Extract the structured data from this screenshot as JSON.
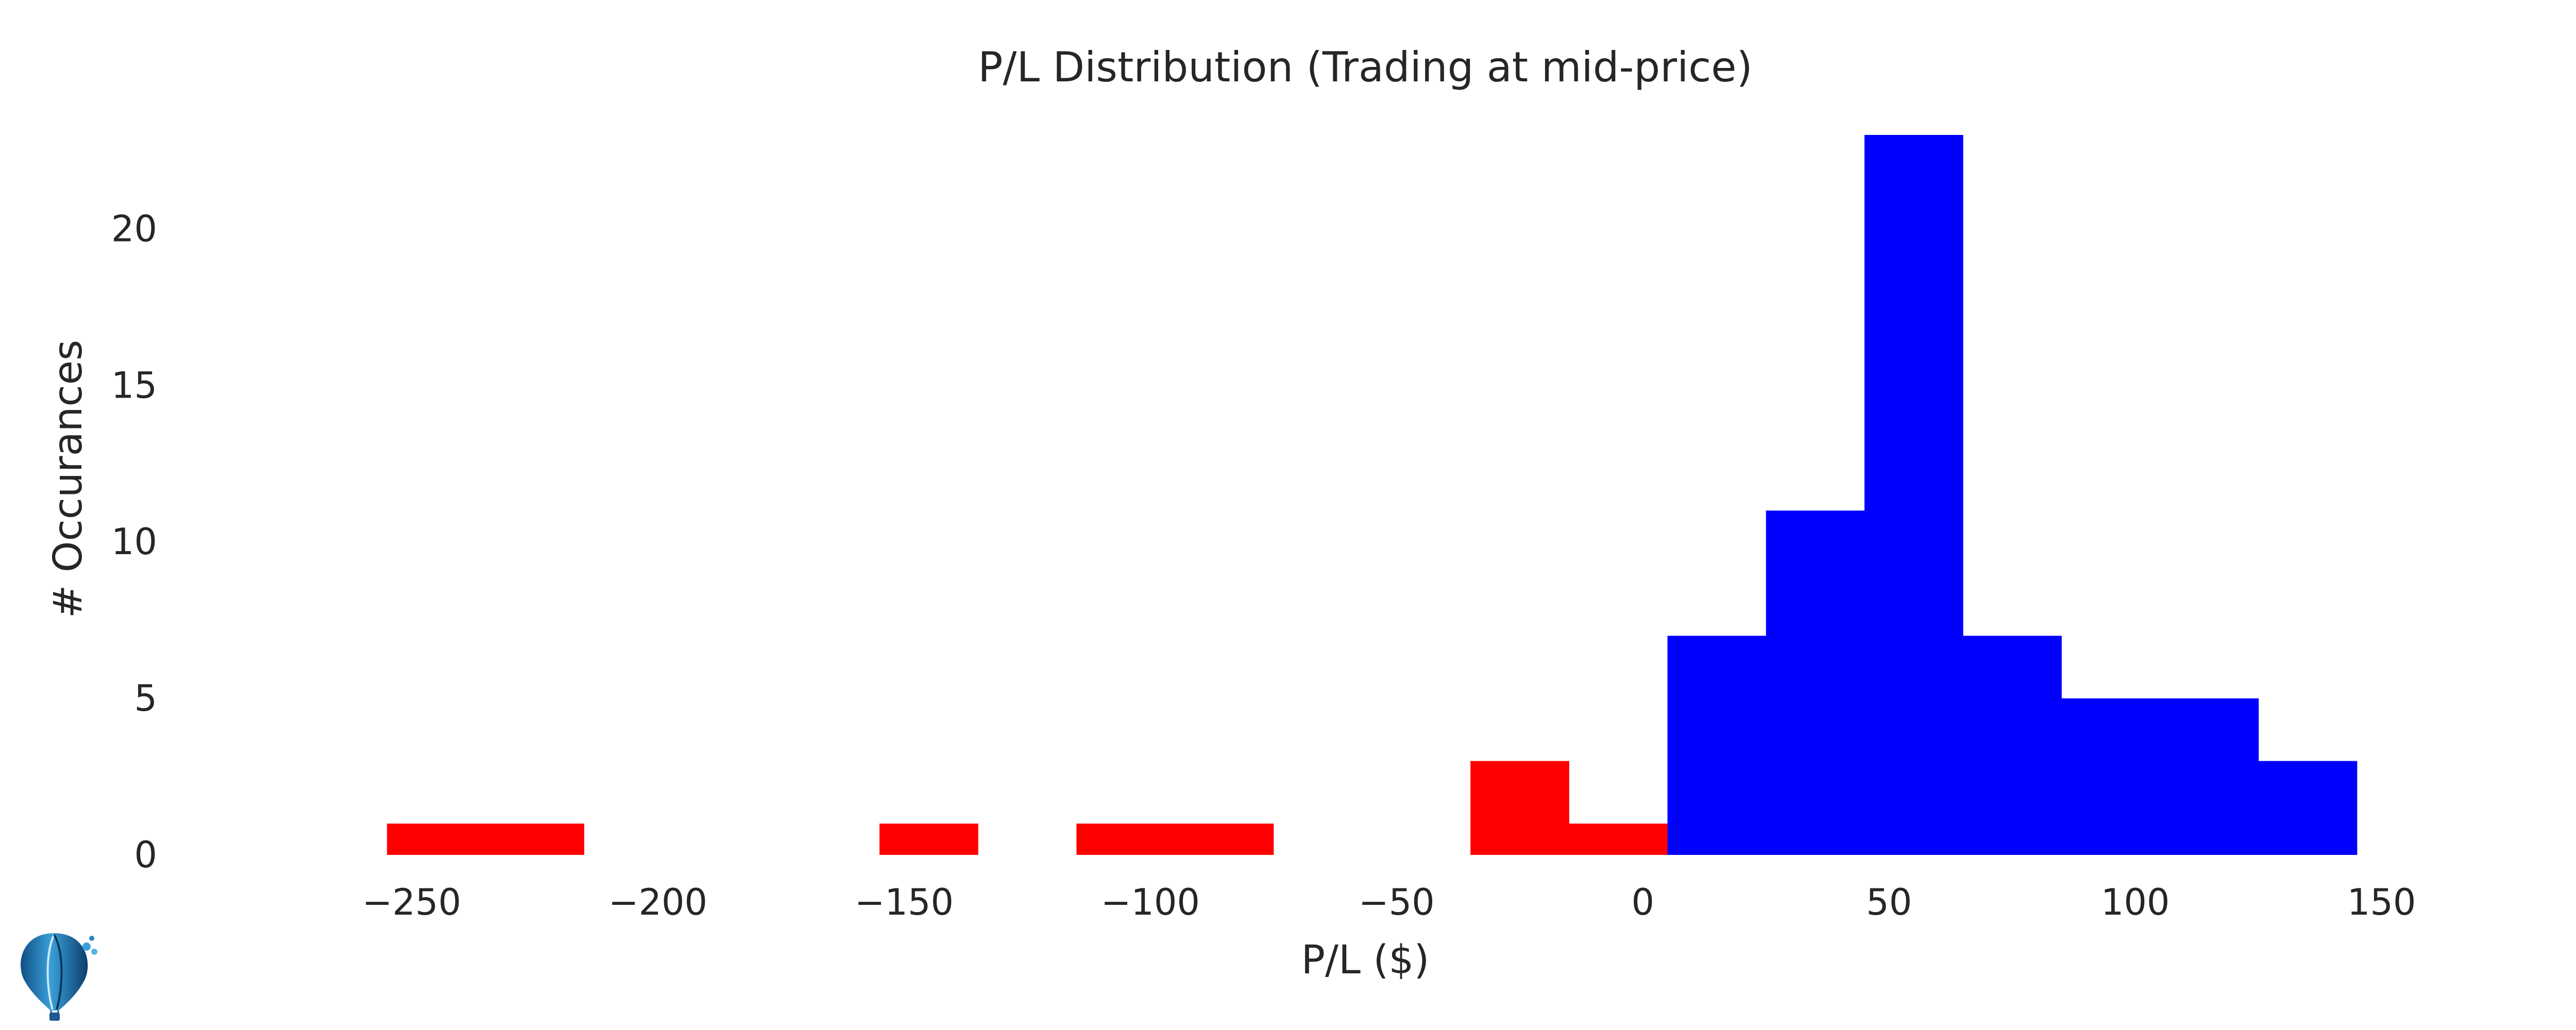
{
  "chart_data": {
    "type": "bar",
    "title": "P/L Distribution (Trading at mid-price)",
    "xlabel": "P/L ($)",
    "ylabel": "# Occurances",
    "xlim": [
      -275,
      165
    ],
    "ylim": [
      0,
      23
    ],
    "grid": false,
    "bin_width": 20,
    "colors": {
      "loss": "#ff0000",
      "profit": "#0000ff"
    },
    "x_ticks": [
      {
        "value": -250,
        "label": "−250"
      },
      {
        "value": -200,
        "label": "−200"
      },
      {
        "value": -150,
        "label": "−150"
      },
      {
        "value": -100,
        "label": "−100"
      },
      {
        "value": -50,
        "label": "−50"
      },
      {
        "value": 0,
        "label": "0"
      },
      {
        "value": 50,
        "label": "50"
      },
      {
        "value": 100,
        "label": "100"
      },
      {
        "value": 150,
        "label": "150"
      }
    ],
    "y_ticks": [
      {
        "value": 0,
        "label": "0"
      },
      {
        "value": 5,
        "label": "5"
      },
      {
        "value": 10,
        "label": "10"
      },
      {
        "value": 15,
        "label": "15"
      },
      {
        "value": 20,
        "label": "20"
      }
    ],
    "bins": [
      {
        "start": -255,
        "end": -235,
        "count": 1,
        "kind": "loss"
      },
      {
        "start": -235,
        "end": -215,
        "count": 1,
        "kind": "loss"
      },
      {
        "start": -155,
        "end": -135,
        "count": 1,
        "kind": "loss"
      },
      {
        "start": -115,
        "end": -95,
        "count": 1,
        "kind": "loss"
      },
      {
        "start": -95,
        "end": -75,
        "count": 1,
        "kind": "loss"
      },
      {
        "start": -35,
        "end": -15,
        "count": 3,
        "kind": "loss"
      },
      {
        "start": -15,
        "end": 5,
        "count": 1,
        "kind": "loss"
      },
      {
        "start": 5,
        "end": 25,
        "count": 7,
        "kind": "profit"
      },
      {
        "start": 25,
        "end": 45,
        "count": 11,
        "kind": "profit"
      },
      {
        "start": 45,
        "end": 65,
        "count": 23,
        "kind": "profit"
      },
      {
        "start": 65,
        "end": 85,
        "count": 7,
        "kind": "profit"
      },
      {
        "start": 85,
        "end": 105,
        "count": 5,
        "kind": "profit"
      },
      {
        "start": 105,
        "end": 125,
        "count": 5,
        "kind": "profit"
      },
      {
        "start": 125,
        "end": 145,
        "count": 3,
        "kind": "profit"
      }
    ]
  },
  "logo": {
    "icon": "hot-air-balloon-icon"
  }
}
